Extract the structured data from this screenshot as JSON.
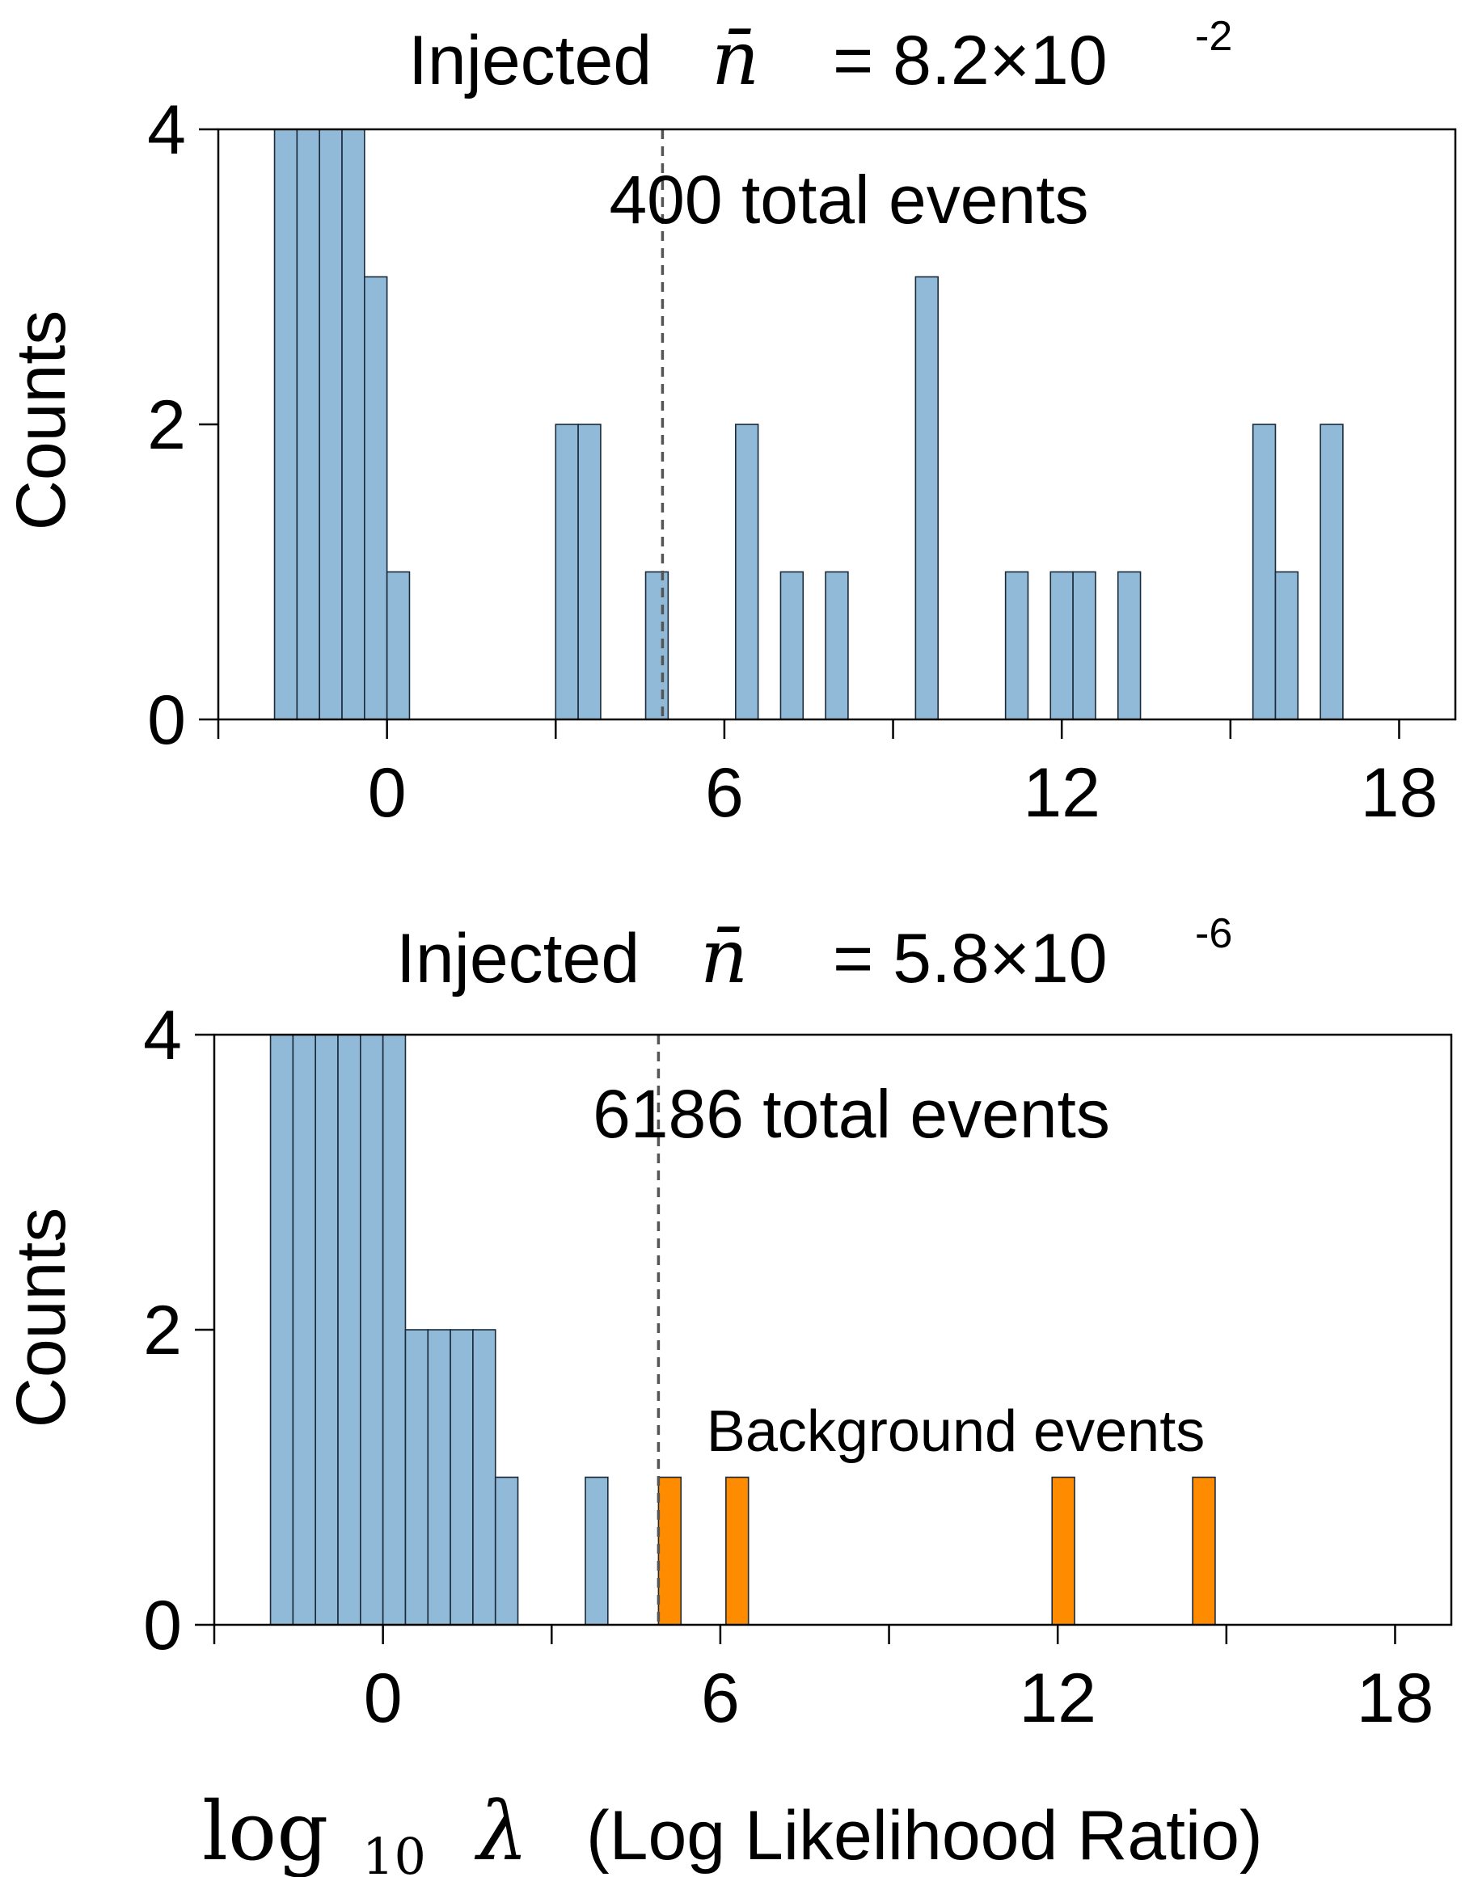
{
  "colors": {
    "signal_bar": "#91bad8",
    "background_bar": "#ff8c00",
    "bar_edge": "#1a2a3a",
    "threshold_line": "#555555"
  },
  "chart_data": [
    {
      "type": "bar",
      "title_prefix": "Injected",
      "title_symbol": "n̄",
      "title_value": "= 8.2×10",
      "title_exponent": "-2",
      "annotation": "400 total events",
      "ylabel": "Counts",
      "xlim": [
        -3,
        19
      ],
      "ylim": [
        0,
        4
      ],
      "xticks": [
        -3,
        0,
        3,
        6,
        9,
        12,
        15,
        18
      ],
      "xticklabels": [
        "",
        "0",
        "",
        "6",
        "",
        "12",
        "",
        "18"
      ],
      "yticks": [
        0,
        2,
        4
      ],
      "yticklabels": [
        "0",
        "2",
        "4"
      ],
      "threshold": 4.9,
      "bin_width": 0.4,
      "series": [
        {
          "color": "signal",
          "bins": [
            {
              "x": -2.0,
              "count": 4
            },
            {
              "x": -1.6,
              "count": 4
            },
            {
              "x": -1.2,
              "count": 4
            },
            {
              "x": -0.8,
              "count": 4
            },
            {
              "x": -0.4,
              "count": 3
            },
            {
              "x": 0.0,
              "count": 1
            },
            {
              "x": 3.0,
              "count": 2
            },
            {
              "x": 3.4,
              "count": 2
            },
            {
              "x": 4.6,
              "count": 1
            },
            {
              "x": 6.2,
              "count": 2
            },
            {
              "x": 7.0,
              "count": 1
            },
            {
              "x": 7.8,
              "count": 1
            },
            {
              "x": 9.4,
              "count": 3
            },
            {
              "x": 11.0,
              "count": 1
            },
            {
              "x": 11.8,
              "count": 1
            },
            {
              "x": 12.2,
              "count": 1
            },
            {
              "x": 13.0,
              "count": 1
            },
            {
              "x": 15.4,
              "count": 2
            },
            {
              "x": 15.8,
              "count": 1
            },
            {
              "x": 16.6,
              "count": 2
            }
          ]
        }
      ]
    },
    {
      "type": "bar",
      "title_prefix": "Injected",
      "title_symbol": "n̄",
      "title_value": "= 5.8×10",
      "title_exponent": "-6",
      "annotation": "6186 total events",
      "annotation2": "Background events",
      "ylabel": "Counts",
      "xlabel_math": "log",
      "xlabel_sub": "10",
      "xlabel_symbol": "λ",
      "xlabel_text": "(Log Likelihood Ratio)",
      "xlim": [
        -3,
        19
      ],
      "ylim": [
        0,
        4
      ],
      "xticks": [
        -3,
        0,
        3,
        6,
        9,
        12,
        15,
        18
      ],
      "xticklabels": [
        "",
        "0",
        "",
        "6",
        "",
        "12",
        "",
        "18"
      ],
      "yticks": [
        0,
        2,
        4
      ],
      "yticklabels": [
        "0",
        "2",
        "4"
      ],
      "threshold": 4.9,
      "bin_width": 0.4,
      "series": [
        {
          "color": "signal",
          "bins": [
            {
              "x": -2.0,
              "count": 4
            },
            {
              "x": -1.6,
              "count": 4
            },
            {
              "x": -1.2,
              "count": 4
            },
            {
              "x": -0.8,
              "count": 4
            },
            {
              "x": -0.4,
              "count": 4
            },
            {
              "x": 0.0,
              "count": 4
            },
            {
              "x": 0.4,
              "count": 2
            },
            {
              "x": 0.8,
              "count": 2
            },
            {
              "x": 1.2,
              "count": 2
            },
            {
              "x": 1.6,
              "count": 2
            },
            {
              "x": 2.0,
              "count": 1
            },
            {
              "x": 3.6,
              "count": 1
            }
          ]
        },
        {
          "color": "background",
          "bins": [
            {
              "x": 4.9,
              "count": 1
            },
            {
              "x": 6.1,
              "count": 1
            },
            {
              "x": 11.9,
              "count": 1
            },
            {
              "x": 14.4,
              "count": 1
            }
          ]
        }
      ]
    }
  ]
}
